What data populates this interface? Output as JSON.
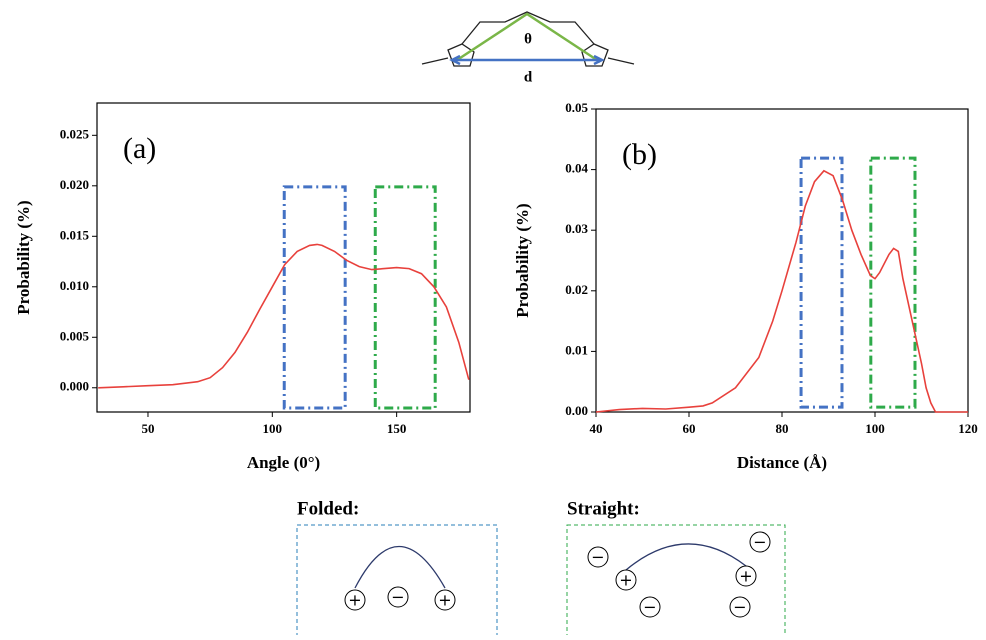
{
  "chart_data": [
    {
      "type": "line",
      "panel_label": "(a)",
      "xlabel": "Angle (0°)",
      "ylabel": "Probability (%)",
      "color": "#e8413c",
      "x": [
        30,
        40,
        50,
        60,
        70,
        75,
        80,
        85,
        90,
        95,
        100,
        105,
        110,
        115,
        118,
        120,
        125,
        130,
        135,
        140,
        145,
        150,
        155,
        160,
        165,
        170,
        175,
        179
      ],
      "values": [
        0.0,
        0.0001,
        0.0002,
        0.0003,
        0.0006,
        0.001,
        0.002,
        0.0035,
        0.0055,
        0.0078,
        0.01,
        0.0122,
        0.0135,
        0.0141,
        0.0142,
        0.0141,
        0.0135,
        0.0126,
        0.012,
        0.0117,
        0.0118,
        0.0119,
        0.0118,
        0.0113,
        0.01,
        0.008,
        0.0045,
        0.0008
      ],
      "xlim": [
        29.5,
        179.5
      ],
      "ylim": [
        -0.0024,
        0.0282
      ],
      "xticks": [
        50,
        100,
        150
      ],
      "yticks": [
        {
          "value": 0,
          "label": "0.000"
        },
        0.005,
        {
          "value": 0.01,
          "label": "0.010"
        },
        0.015,
        {
          "value": 0.02,
          "label": "0.020"
        },
        0.025
      ],
      "regions": [
        {
          "color": "#4472c4",
          "x": [
            104.8,
            129.3
          ],
          "y": [
            -0.002,
            0.0199
          ]
        },
        {
          "color": "#2eaa4a",
          "x": [
            141.4,
            165.5
          ],
          "y": [
            -0.002,
            0.0199
          ]
        }
      ]
    },
    {
      "type": "line",
      "panel_label": "(b)",
      "xlabel": "Distance (Å)",
      "ylabel": "Probability (%)",
      "color": "#e8413c",
      "x": [
        40,
        45,
        50,
        55,
        60,
        63,
        65,
        70,
        75,
        78,
        80,
        83,
        85,
        87,
        89,
        91,
        93,
        95,
        97,
        99,
        100,
        101,
        103,
        104,
        105,
        106,
        108,
        110,
        111,
        112,
        113,
        120
      ],
      "values": [
        0.0,
        0.0004,
        0.0006,
        0.0005,
        0.0008,
        0.001,
        0.0015,
        0.004,
        0.009,
        0.015,
        0.02,
        0.028,
        0.034,
        0.038,
        0.0398,
        0.039,
        0.035,
        0.03,
        0.026,
        0.0225,
        0.022,
        0.023,
        0.026,
        0.027,
        0.0265,
        0.022,
        0.015,
        0.008,
        0.004,
        0.0015,
        0.0,
        0.0
      ],
      "xlim": [
        40,
        120
      ],
      "ylim": [
        0,
        0.05
      ],
      "xticks": [
        40,
        60,
        80,
        100,
        120
      ],
      "yticks": [
        {
          "value": 0,
          "label": "0.00"
        },
        0.01,
        0.02,
        0.03,
        0.04,
        0.05
      ],
      "regions": [
        {
          "color": "#4472c4",
          "x": [
            84.1,
            92.9
          ],
          "y": [
            0.0008,
            0.0419
          ]
        },
        {
          "color": "#2eaa4a",
          "x": [
            99.1,
            108.6
          ],
          "y": [
            0.0008,
            0.0419
          ]
        }
      ]
    }
  ],
  "molecule": {
    "angle_label": "θ",
    "distance_label": "d"
  },
  "states": [
    {
      "title": "Folded:",
      "charges": [
        "+",
        "−",
        "+"
      ]
    },
    {
      "title": "Straight:",
      "charges": [
        "−",
        "+",
        "−",
        "+",
        "−",
        "−"
      ]
    }
  ]
}
